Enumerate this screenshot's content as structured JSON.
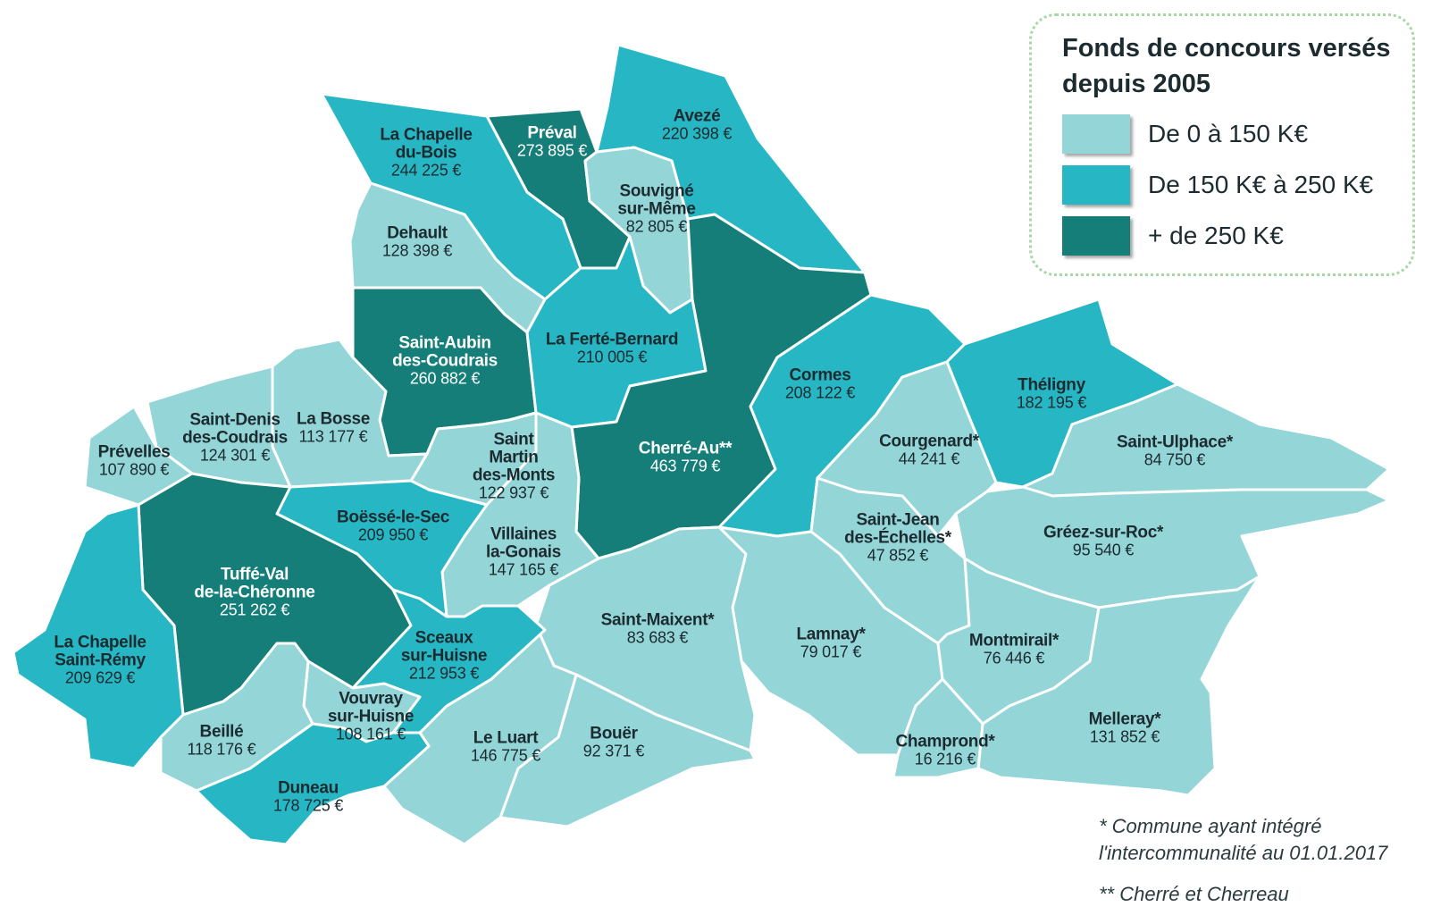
{
  "legend": {
    "title_line1": "Fonds de concours versés",
    "title_line2": "depuis 2005",
    "classes": [
      {
        "label": "De 0 à 150 K€",
        "color": "#94d5d8"
      },
      {
        "label": "De 150 K€ à 250 K€",
        "color": "#27b7c4"
      },
      {
        "label": "+ de 250 K€",
        "color": "#157e79"
      }
    ]
  },
  "notes": {
    "note1_line1": "* Commune ayant intégré",
    "note1_line2": "l'intercommunalité au 01.01.2017",
    "note2": "** Cherré et Cherreau"
  },
  "communes": [
    {
      "name": "Avezé",
      "amount": "220 398 €",
      "class": 1
    },
    {
      "name": "La Chapelle du-Bois",
      "line1": "La Chapelle",
      "line2": "du-Bois",
      "amount": "244 225 €",
      "class": 1
    },
    {
      "name": "Préval",
      "amount": "273 895 €",
      "class": 2
    },
    {
      "name": "Souvigné sur-Même",
      "line1": "Souvigné",
      "line2": "sur-Même",
      "amount": "82 805 €",
      "class": 0
    },
    {
      "name": "Dehault",
      "amount": "128 398 €",
      "class": 0
    },
    {
      "name": "Saint-Aubin des-Coudrais",
      "line1": "Saint-Aubin",
      "line2": "des-Coudrais",
      "amount": "260 882 €",
      "class": 2
    },
    {
      "name": "La Ferté-Bernard",
      "amount": "210 005 €",
      "class": 1
    },
    {
      "name": "Cormes",
      "amount": "208 122 €",
      "class": 1
    },
    {
      "name": "Théligny",
      "amount": "182 195 €",
      "class": 1
    },
    {
      "name": "Saint-Denis des-Coudrais",
      "line1": "Saint-Denis",
      "line2": "des-Coudrais",
      "amount": "124 301 €",
      "class": 0
    },
    {
      "name": "La Bosse",
      "amount": "113 177 €",
      "class": 0
    },
    {
      "name": "Prévelles",
      "amount": "107 890 €",
      "class": 0
    },
    {
      "name": "Saint Martin des-Monts",
      "line1": "Saint",
      "line2": "Martin",
      "line3": "des-Monts",
      "amount": "122 937 €",
      "class": 0
    },
    {
      "name": "Cherré-Au**",
      "amount": "463 779 €",
      "class": 2
    },
    {
      "name": "Courgenard*",
      "amount": "44 241 €",
      "class": 0
    },
    {
      "name": "Saint-Ulphace*",
      "amount": "84 750 €",
      "class": 0
    },
    {
      "name": "Boëssé-le-Sec",
      "amount": "209 950 €",
      "class": 1
    },
    {
      "name": "Villaines la-Gonais",
      "line1": "Villaines",
      "line2": "la-Gonais",
      "amount": "147 165 €",
      "class": 0
    },
    {
      "name": "Saint-Jean des-Échelles*",
      "line1": "Saint-Jean",
      "line2": "des-Échelles*",
      "amount": "47 852 €",
      "class": 0
    },
    {
      "name": "Gréez-sur-Roc*",
      "amount": "95 540 €",
      "class": 0
    },
    {
      "name": "Tuffé-Val de-la-Chéronne",
      "line1": "Tuffé-Val",
      "line2": "de-la-Chéronne",
      "amount": "251 262 €",
      "class": 2
    },
    {
      "name": "Saint-Maixent*",
      "amount": "83 683 €",
      "class": 0
    },
    {
      "name": "Lamnay*",
      "amount": "79 017 €",
      "class": 0
    },
    {
      "name": "Montmirail*",
      "amount": "76 446 €",
      "class": 0
    },
    {
      "name": "La Chapelle Saint-Rémy",
      "line1": "La Chapelle",
      "line2": "Saint-Rémy",
      "amount": "209 629 €",
      "class": 1
    },
    {
      "name": "Sceaux sur-Huisne",
      "line1": "Sceaux",
      "line2": "sur-Huisne",
      "amount": "212 953 €",
      "class": 1
    },
    {
      "name": "Vouvray sur-Huisne",
      "line1": "Vouvray",
      "line2": "sur-Huisne",
      "amount": "108 161 €",
      "class": 0
    },
    {
      "name": "Beillé",
      "amount": "118 176 €",
      "class": 0
    },
    {
      "name": "Le Luart",
      "amount": "146 775 €",
      "class": 0
    },
    {
      "name": "Bouër",
      "amount": "92 371 €",
      "class": 0
    },
    {
      "name": "Melleray*",
      "amount": "131 852 €",
      "class": 0
    },
    {
      "name": "Champrond*",
      "amount": "16 216 €",
      "class": 0
    },
    {
      "name": "Duneau",
      "amount": "178 725 €",
      "class": 1
    }
  ]
}
